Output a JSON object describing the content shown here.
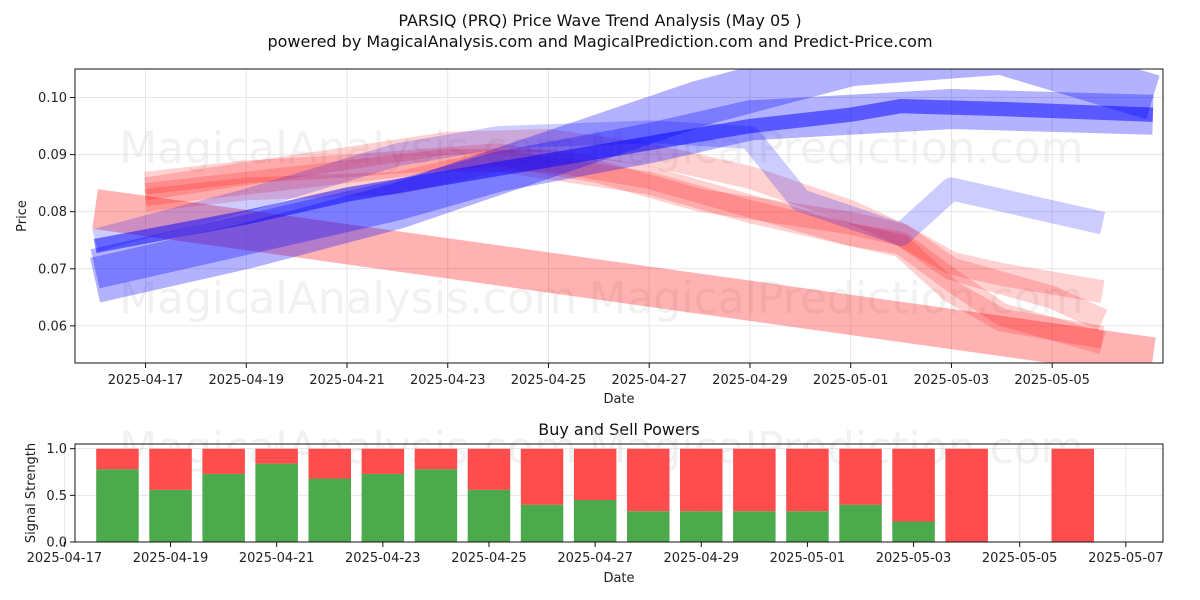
{
  "header": {
    "title": "PARSIQ (PRQ) Price Wave Trend Analysis (May 05 )",
    "subtitle": "powered by MagicalAnalysis.com and MagicalPrediction.com and Predict-Price.com"
  },
  "watermarks": {
    "left": "MagicalAnalysis.com",
    "right": "MagicalPrediction.com"
  },
  "colors": {
    "red": "#ff0000",
    "blue": "#0000ff",
    "purple": "#7733cc",
    "buy": "#4caa4c",
    "sell": "#ff4c4c"
  },
  "chart_data": [
    {
      "type": "area",
      "xlabel": "Date",
      "ylabel": "Price",
      "xlim": [
        "2025-04-15.6",
        "2025-05-07.2"
      ],
      "ylim": [
        0.0535,
        0.105
      ],
      "x_ticks": [
        "2025-04-17",
        "2025-04-19",
        "2025-04-21",
        "2025-04-23",
        "2025-04-25",
        "2025-04-27",
        "2025-04-29",
        "2025-05-01",
        "2025-05-03",
        "2025-05-05"
      ],
      "y_ticks": [
        "0.06",
        "0.07",
        "0.08",
        "0.09",
        "0.10"
      ],
      "grid": true,
      "series": [
        {
          "color": "red",
          "opacity": 0.3,
          "band": 0.007,
          "points": [
            [
              "2025-04-16",
              0.0805
            ],
            [
              "2025-05-07",
              0.0545
            ]
          ]
        },
        {
          "color": "red",
          "opacity": 0.18,
          "band": 0.004,
          "points": [
            [
              "2025-04-17",
              0.084
            ],
            [
              "2025-04-20",
              0.088
            ],
            [
              "2025-04-23",
              0.092
            ],
            [
              "2025-04-25",
              0.0925
            ],
            [
              "2025-04-27",
              0.09
            ],
            [
              "2025-04-29",
              0.086
            ],
            [
              "2025-05-01",
              0.08
            ],
            [
              "2025-05-02",
              0.076
            ],
            [
              "2025-05-03",
              0.071
            ],
            [
              "2025-05-04",
              0.069
            ],
            [
              "2025-05-06",
              0.066
            ]
          ]
        },
        {
          "color": "red",
          "opacity": 0.18,
          "band": 0.004,
          "points": [
            [
              "2025-04-17",
              0.083
            ],
            [
              "2025-04-20",
              0.086
            ],
            [
              "2025-04-23",
              0.089
            ],
            [
              "2025-04-25",
              0.089
            ],
            [
              "2025-04-27",
              0.086
            ],
            [
              "2025-04-29",
              0.081
            ],
            [
              "2025-05-01",
              0.076
            ],
            [
              "2025-05-02",
              0.0745
            ],
            [
              "2025-05-03",
              0.068
            ],
            [
              "2025-05-04",
              0.062
            ],
            [
              "2025-05-06",
              0.057
            ]
          ]
        },
        {
          "color": "red",
          "opacity": 0.18,
          "band": 0.004,
          "points": [
            [
              "2025-04-17",
              0.082
            ],
            [
              "2025-04-19",
              0.084
            ],
            [
              "2025-04-22",
              0.085
            ],
            [
              "2025-04-24",
              0.089
            ],
            [
              "2025-04-27",
              0.085
            ],
            [
              "2025-04-29",
              0.08
            ],
            [
              "2025-05-01",
              0.076
            ],
            [
              "2025-05-02",
              0.074
            ],
            [
              "2025-05-03",
              0.066
            ],
            [
              "2025-05-04",
              0.061
            ],
            [
              "2025-05-06",
              0.058
            ]
          ]
        },
        {
          "color": "red",
          "opacity": 0.18,
          "band": 0.004,
          "points": [
            [
              "2025-04-17",
              0.085
            ],
            [
              "2025-04-19",
              0.087
            ],
            [
              "2025-04-21",
              0.088
            ],
            [
              "2025-04-24",
              0.09
            ],
            [
              "2025-04-26",
              0.087
            ],
            [
              "2025-04-28",
              0.082
            ],
            [
              "2025-05-01",
              0.078
            ],
            [
              "2025-05-02",
              0.076
            ],
            [
              "2025-05-03",
              0.07
            ],
            [
              "2025-05-05",
              0.065
            ],
            [
              "2025-05-06",
              0.061
            ]
          ]
        },
        {
          "color": "blue",
          "opacity": 0.2,
          "band": 0.004,
          "points": [
            [
              "2025-04-16",
              0.075
            ],
            [
              "2025-04-19",
              0.082
            ],
            [
              "2025-04-22",
              0.09
            ],
            [
              "2025-04-24",
              0.093
            ],
            [
              "2025-04-27",
              0.094
            ],
            [
              "2025-04-29",
              0.093
            ],
            [
              "2025-04-30",
              0.082
            ],
            [
              "2025-05-02",
              0.076
            ],
            [
              "2025-05-03",
              0.084
            ],
            [
              "2025-05-04",
              0.082
            ],
            [
              "2025-05-06",
              0.078
            ]
          ]
        },
        {
          "color": "blue",
          "opacity": 0.3,
          "band": 0.008,
          "points": [
            [
              "2025-04-16",
              0.068
            ],
            [
              "2025-04-19",
              0.074
            ],
            [
              "2025-04-22",
              0.081
            ],
            [
              "2025-04-25",
              0.09
            ],
            [
              "2025-04-28",
              0.099
            ],
            [
              "2025-05-01",
              0.106
            ],
            [
              "2025-05-04",
              0.108
            ],
            [
              "2025-05-07",
              0.1
            ]
          ]
        },
        {
          "color": "blue",
          "opacity": 0.3,
          "band": 0.007,
          "points": [
            [
              "2025-04-16",
              0.07
            ],
            [
              "2025-04-19",
              0.076
            ],
            [
              "2025-04-22",
              0.082
            ],
            [
              "2025-04-24",
              0.087
            ],
            [
              "2025-04-27",
              0.092
            ],
            [
              "2025-04-29",
              0.096
            ],
            [
              "2025-05-01",
              0.097
            ],
            [
              "2025-05-03",
              0.098
            ],
            [
              "2025-05-07",
              0.097
            ]
          ]
        },
        {
          "color": "blue",
          "opacity": 0.5,
          "band": 0.0025,
          "points": [
            [
              "2025-04-16",
              0.074
            ],
            [
              "2025-04-19",
              0.079
            ],
            [
              "2025-04-21",
              0.083
            ],
            [
              "2025-04-23",
              0.086
            ],
            [
              "2025-04-25",
              0.089
            ],
            [
              "2025-04-27",
              0.092
            ],
            [
              "2025-04-29",
              0.095
            ],
            [
              "2025-05-01",
              0.097
            ],
            [
              "2025-05-02",
              0.0985
            ],
            [
              "2025-05-04",
              0.098
            ],
            [
              "2025-05-07",
              0.097
            ]
          ]
        }
      ]
    },
    {
      "type": "bar",
      "title": "Buy and Sell Powers",
      "xlabel": "Date",
      "ylabel": "Signal Strength",
      "xlim": [
        "2025-04-17.2",
        "2025-05-07.7"
      ],
      "ylim": [
        0,
        1.05
      ],
      "x_ticks": [
        "2025-04-17",
        "2025-04-19",
        "2025-04-21",
        "2025-04-23",
        "2025-04-25",
        "2025-04-27",
        "2025-04-29",
        "2025-05-01",
        "2025-05-03",
        "2025-05-05",
        "2025-05-07"
      ],
      "y_ticks": [
        "0.0",
        "0.5",
        "1.0"
      ],
      "grid": true,
      "categories": [
        "2025-04-18",
        "2025-04-19",
        "2025-04-20",
        "2025-04-21",
        "2025-04-22",
        "2025-04-23",
        "2025-04-24",
        "2025-04-25",
        "2025-04-26",
        "2025-04-27",
        "2025-04-28",
        "2025-04-29",
        "2025-04-30",
        "2025-05-01",
        "2025-05-02",
        "2025-05-03",
        "2025-05-04",
        "2025-05-06"
      ],
      "series": [
        {
          "name": "buy",
          "values": [
            0.78,
            0.56,
            0.73,
            0.84,
            0.68,
            0.73,
            0.78,
            0.56,
            0.4,
            0.45,
            0.33,
            0.33,
            0.33,
            0.33,
            0.4,
            0.22,
            0.0,
            0.0
          ]
        },
        {
          "name": "sell",
          "values": [
            0.22,
            0.44,
            0.27,
            0.16,
            0.32,
            0.27,
            0.22,
            0.44,
            0.6,
            0.55,
            0.67,
            0.67,
            0.67,
            0.67,
            0.6,
            0.78,
            1.0,
            1.0
          ]
        }
      ]
    }
  ]
}
